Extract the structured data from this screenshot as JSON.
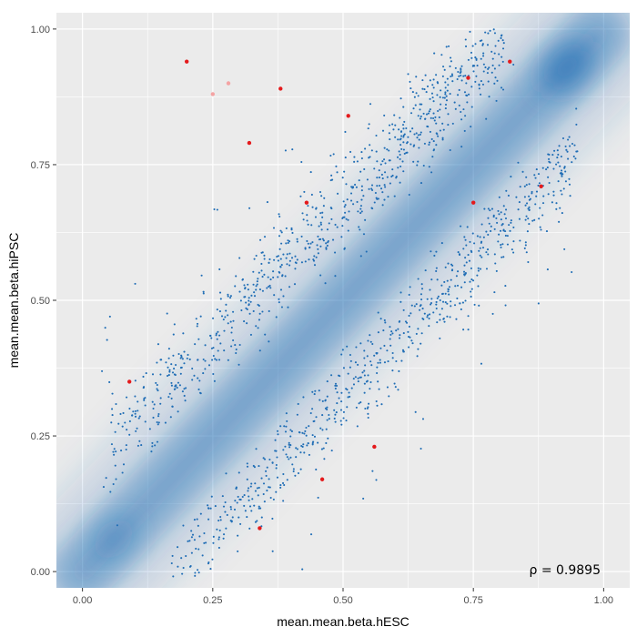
{
  "chart_data": {
    "type": "scatter",
    "xlabel": "mean.mean.beta.hESC",
    "ylabel": "mean.mean.beta.hiPSC",
    "xlim": [
      -0.05,
      1.05
    ],
    "ylim": [
      -0.03,
      1.03
    ],
    "x_ticks": [
      "0.00",
      "0.25",
      "0.50",
      "0.75",
      "1.00"
    ],
    "y_ticks": [
      "0.00",
      "0.25",
      "0.50",
      "0.75",
      "1.00"
    ],
    "grid": true,
    "annotation": "ρ = 0.9895",
    "density_overlay": {
      "color": "#2171b5",
      "along": "y = x"
    },
    "colors": {
      "points": "#1f6db5",
      "highlight": "#e41a1c",
      "highlight_faded": "#f4a3a3",
      "panel": "#ebebeb",
      "grid": "#ffffff"
    },
    "highlight_points": [
      {
        "x": 0.2,
        "y": 0.94
      },
      {
        "x": 0.38,
        "y": 0.89
      },
      {
        "x": 0.32,
        "y": 0.79
      },
      {
        "x": 0.51,
        "y": 0.84
      },
      {
        "x": 0.74,
        "y": 0.91
      },
      {
        "x": 0.82,
        "y": 0.94
      },
      {
        "x": 0.43,
        "y": 0.68
      },
      {
        "x": 0.75,
        "y": 0.68
      },
      {
        "x": 0.88,
        "y": 0.71
      },
      {
        "x": 0.09,
        "y": 0.35
      },
      {
        "x": 0.56,
        "y": 0.23
      },
      {
        "x": 0.46,
        "y": 0.17
      },
      {
        "x": 0.34,
        "y": 0.08
      }
    ],
    "faded_points": [
      {
        "x": 0.25,
        "y": 0.88
      },
      {
        "x": 0.28,
        "y": 0.9
      }
    ],
    "clusters": [
      {
        "name": "upper band",
        "x_range": [
          0.05,
          0.8
        ],
        "relation": "y ≈ x + 0.18",
        "approx_count": 800
      },
      {
        "name": "lower band",
        "x_range": [
          0.17,
          0.95
        ],
        "relation": "y ≈ x − 0.18",
        "approx_count": 700
      },
      {
        "name": "sparse scatter",
        "x_range": [
          0.02,
          0.95
        ],
        "approx_count": 120
      }
    ]
  }
}
